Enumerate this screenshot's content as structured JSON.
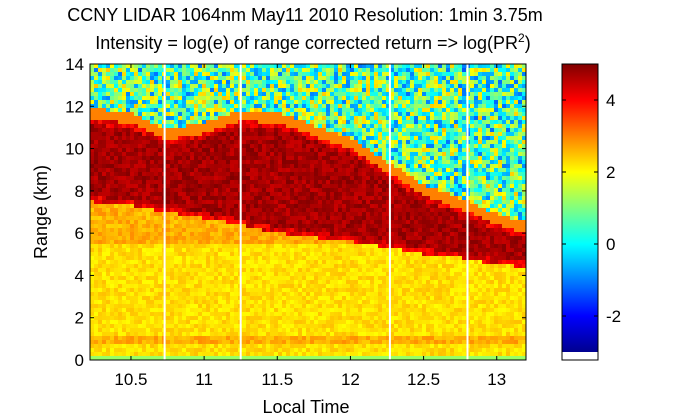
{
  "chart_data": {
    "type": "heatmap",
    "title": "CCNY LIDAR 1064nm May11 2010 Resolution: 1min 3.75m",
    "subtitle": {
      "prefix": "Intensity = log(e) of range corrected return => log(PR",
      "superscript": "2",
      "suffix": ")"
    },
    "xlabel": "Local Time",
    "ylabel": "Range (km)",
    "xlim": [
      10.22,
      13.2
    ],
    "ylim": [
      0,
      14
    ],
    "xticks": [
      10.5,
      11,
      11.5,
      12,
      12.5,
      13
    ],
    "xtick_labels": [
      "10.5",
      "11",
      "11.5",
      "12",
      "12.5",
      "13"
    ],
    "yticks": [
      0,
      2,
      4,
      6,
      8,
      10,
      12,
      14
    ],
    "ytick_labels": [
      "0",
      "2",
      "4",
      "6",
      "8",
      "10",
      "12",
      "14"
    ],
    "colorbar": {
      "colormap": "jet",
      "range": [
        -3,
        5
      ],
      "ticks": [
        -2,
        0,
        2,
        4
      ],
      "tick_labels": [
        "-2",
        "0",
        "2",
        "4"
      ]
    },
    "data_gaps_local_time": [
      10.73,
      11.25,
      12.27,
      12.8
    ],
    "features": {
      "cloud_base_km": [
        [
          10.22,
          7.5
        ],
        [
          10.5,
          7.3
        ],
        [
          10.73,
          7.0
        ],
        [
          11.0,
          6.7
        ],
        [
          11.25,
          6.4
        ],
        [
          11.5,
          6.0
        ],
        [
          11.75,
          5.8
        ],
        [
          12.0,
          5.6
        ],
        [
          12.27,
          5.3
        ],
        [
          12.5,
          5.0
        ],
        [
          12.8,
          4.8
        ],
        [
          13.0,
          4.5
        ],
        [
          13.2,
          4.4
        ]
      ],
      "cloud_top_km": [
        [
          10.22,
          11.4
        ],
        [
          10.5,
          11.2
        ],
        [
          10.73,
          10.4
        ],
        [
          11.0,
          10.7
        ],
        [
          11.25,
          11.3
        ],
        [
          11.5,
          11.2
        ],
        [
          11.75,
          10.6
        ],
        [
          12.0,
          10.0
        ],
        [
          12.27,
          8.8
        ],
        [
          12.5,
          7.8
        ],
        [
          12.8,
          7.0
        ],
        [
          13.0,
          6.4
        ],
        [
          13.2,
          6.0
        ]
      ],
      "boundary_layer_top_km": 6.2,
      "noise_above_cloud_value_range": [
        -1,
        2.5
      ]
    }
  }
}
